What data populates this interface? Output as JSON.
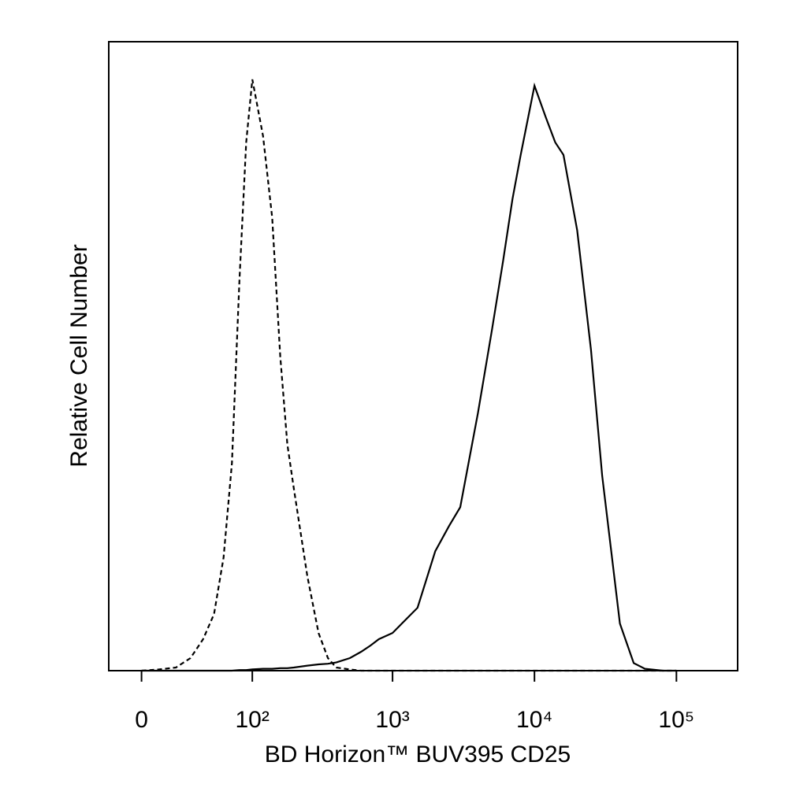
{
  "chart_data": {
    "type": "line",
    "xlabel": "BD Horizon™ BUV395 CD25",
    "ylabel": "Relative Cell Number",
    "xscale": "biexponential",
    "xlim": [
      -19,
      270000
    ],
    "ylim": [
      0,
      100
    ],
    "xticks": [
      0,
      {
        "value": 100,
        "label": "10²"
      },
      {
        "value": 1000,
        "label": "10³"
      },
      {
        "value": 10000,
        "label": "10⁴"
      },
      {
        "value": 100000,
        "label": "10⁵"
      }
    ],
    "x": [
      0,
      10,
      20,
      30,
      40,
      50,
      60,
      70,
      80,
      90,
      100,
      120,
      140,
      160,
      180,
      200,
      250,
      300,
      350,
      400,
      500,
      600,
      700,
      800,
      1000,
      1500,
      2000,
      2500,
      3000,
      4000,
      5000,
      6000,
      7000,
      8000,
      10000,
      12000,
      14000,
      16000,
      20000,
      25000,
      30000,
      40000,
      50000,
      60000,
      80000,
      100000
    ],
    "series": [
      {
        "color": "#000000",
        "line_style": "dashed",
        "values": [
          0,
          0.2,
          0.5,
          2,
          5,
          9,
          18,
          33,
          62,
          84,
          94,
          85,
          72,
          50,
          36,
          29,
          15,
          6,
          2,
          0.5,
          0.2,
          0,
          0,
          0,
          0,
          0,
          0,
          0,
          0,
          0,
          0,
          0,
          0,
          0,
          0,
          0,
          0,
          0,
          0,
          0,
          0,
          0,
          0,
          0,
          0,
          0
        ]
      },
      {
        "color": "#000000",
        "line_style": "solid",
        "values": [
          0,
          0,
          0,
          0,
          0,
          0,
          0,
          0,
          0.1,
          0.1,
          0.2,
          0.3,
          0.3,
          0.4,
          0.4,
          0.5,
          0.8,
          1,
          1.1,
          1.3,
          2,
          3,
          4,
          5,
          6,
          10,
          19,
          23,
          26,
          41,
          54,
          65,
          75,
          82,
          93,
          88,
          84,
          82,
          70,
          51,
          31,
          7.5,
          1.2,
          0.3,
          0,
          0
        ]
      }
    ]
  }
}
